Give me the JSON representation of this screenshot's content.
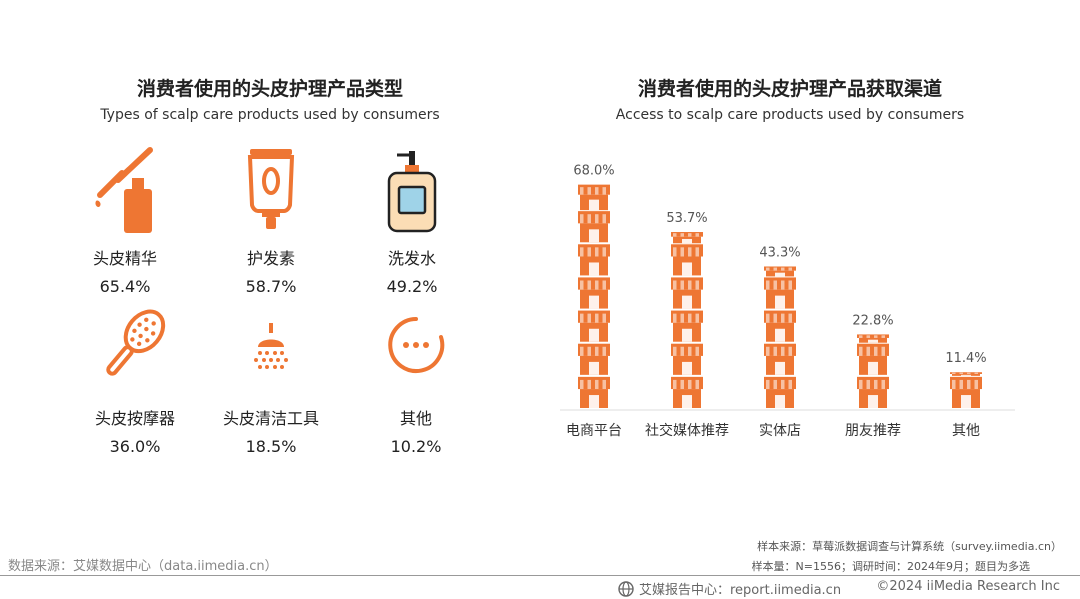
{
  "left_panel": {
    "title": "消费者使用的头皮护理产品类型",
    "subtitle": "Types of scalp care products used by consumers",
    "products": [
      {
        "name": "头皮精华",
        "value": "65.4%",
        "icon": "dropper-icon"
      },
      {
        "name": "护发素",
        "value": "58.7%",
        "icon": "tube-icon"
      },
      {
        "name": "洗发水",
        "value": "49.2%",
        "icon": "pump-bottle-icon"
      },
      {
        "name": "头皮按摩器",
        "value": "36.0%",
        "icon": "massage-brush-icon"
      },
      {
        "name": "头皮清洁工具",
        "value": "18.5%",
        "icon": "shower-icon"
      },
      {
        "name": "其他",
        "value": "10.2%",
        "icon": "more-dots-icon"
      }
    ]
  },
  "right_panel": {
    "title": "消费者使用的头皮护理产品获取渠道",
    "subtitle": "Access to scalp care products used by consumers"
  },
  "chart_data": {
    "type": "bar",
    "categories": [
      "电商平台",
      "社交媒体推荐",
      "实体店",
      "朋友推荐",
      "其他"
    ],
    "values": [
      68.0,
      53.7,
      43.3,
      22.8,
      11.4
    ],
    "value_labels": [
      "68.0%",
      "53.7%",
      "43.3%",
      "22.8%",
      "11.4%"
    ],
    "ylim": [
      0,
      70
    ],
    "grid": false,
    "mark_icon": "storefront-icon",
    "color": "#EE7633"
  },
  "notes": {
    "source_left": "数据来源：艾媒数据中心（data.iimedia.cn）",
    "sample_source": "样本来源：草莓派数据调查与计算系统（survey.iimedia.cn）",
    "sample_info": "样本量：N=1556；调研时间：2024年9月；题目为多选",
    "report": "艾媒报告中心：report.iimedia.cn",
    "copyright": "©2024  iiMedia Research  Inc"
  },
  "colors": {
    "accent": "#EE7633",
    "accent_light": "#F6B183",
    "bottle_body": "#FBDDB5",
    "bottle_window": "#9FD3E8"
  }
}
